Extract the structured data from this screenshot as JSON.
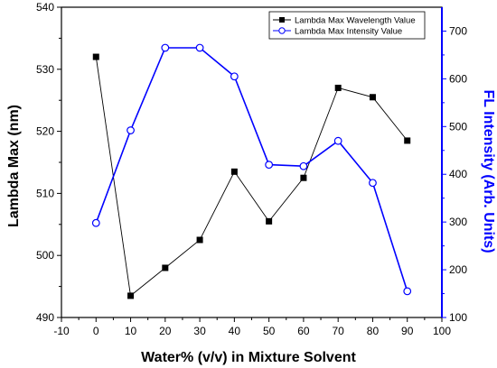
{
  "chart_data": {
    "type": "line",
    "title": "",
    "xlabel": "Water% (v/v) in Mixture Solvent",
    "ylabel_left": "Lambda Max (nm)",
    "ylabel_right": "FL Intensity (Arb. Units)",
    "xlim": [
      -10,
      100
    ],
    "ylim_left": [
      490,
      540
    ],
    "ylim_right": [
      100,
      750
    ],
    "x_ticks": [
      -10,
      0,
      10,
      20,
      30,
      40,
      50,
      60,
      70,
      80,
      90,
      100
    ],
    "y_ticks_left": [
      490,
      500,
      510,
      520,
      530,
      540
    ],
    "y_ticks_right": [
      100,
      200,
      300,
      400,
      500,
      600,
      700
    ],
    "grid": false,
    "legend_position": "top-right",
    "x": [
      0,
      10,
      20,
      30,
      40,
      50,
      60,
      70,
      80,
      90
    ],
    "series": [
      {
        "name": "Lambda Max Wavelength Value",
        "axis": "left",
        "color": "#000000",
        "marker": "filled-square",
        "x": [
          0,
          10,
          20,
          30,
          40,
          50,
          60,
          70,
          80,
          90
        ],
        "values": [
          532,
          493.5,
          498,
          502.5,
          513.5,
          505.5,
          512.5,
          527,
          525.5,
          518.5
        ]
      },
      {
        "name": "Lambda Max Intensity Value",
        "axis": "right",
        "color": "#0000ff",
        "marker": "open-circle",
        "x": [
          0,
          10,
          20,
          30,
          40,
          50,
          60,
          70,
          80,
          90
        ],
        "values": [
          298,
          492,
          665,
          665,
          605,
          420,
          417,
          470,
          382,
          155
        ]
      }
    ]
  }
}
